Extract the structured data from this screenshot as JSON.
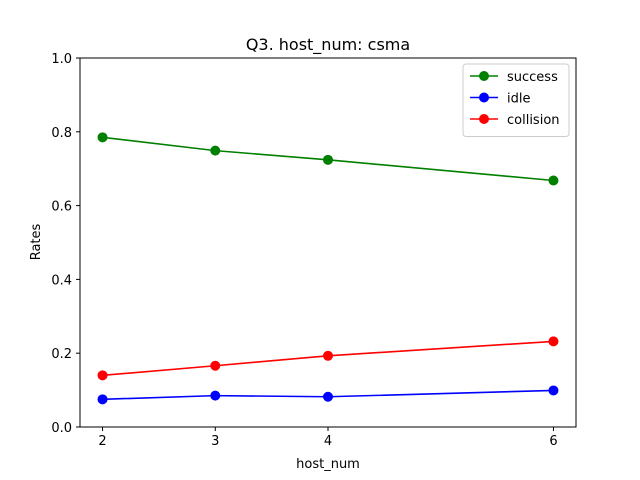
{
  "chart_data": {
    "type": "line",
    "title": "Q3. host_num: csma",
    "xlabel": "host_num",
    "ylabel": "Rates",
    "x": [
      2,
      3,
      4,
      6
    ],
    "xticks": [
      "2",
      "3",
      "4",
      "6"
    ],
    "xlim": [
      1.8,
      6.2
    ],
    "ylim": [
      0.0,
      1.0
    ],
    "yticks": [
      "0.0",
      "0.2",
      "0.4",
      "0.6",
      "0.8",
      "1.0"
    ],
    "grid": false,
    "legend_position": "top-right",
    "series": [
      {
        "name": "success",
        "color": "#008000",
        "values": [
          0.785,
          0.749,
          0.724,
          0.668
        ]
      },
      {
        "name": "idle",
        "color": "#0000ff",
        "values": [
          0.075,
          0.085,
          0.082,
          0.099
        ]
      },
      {
        "name": "collision",
        "color": "#ff0000",
        "values": [
          0.14,
          0.166,
          0.193,
          0.232
        ]
      }
    ]
  }
}
